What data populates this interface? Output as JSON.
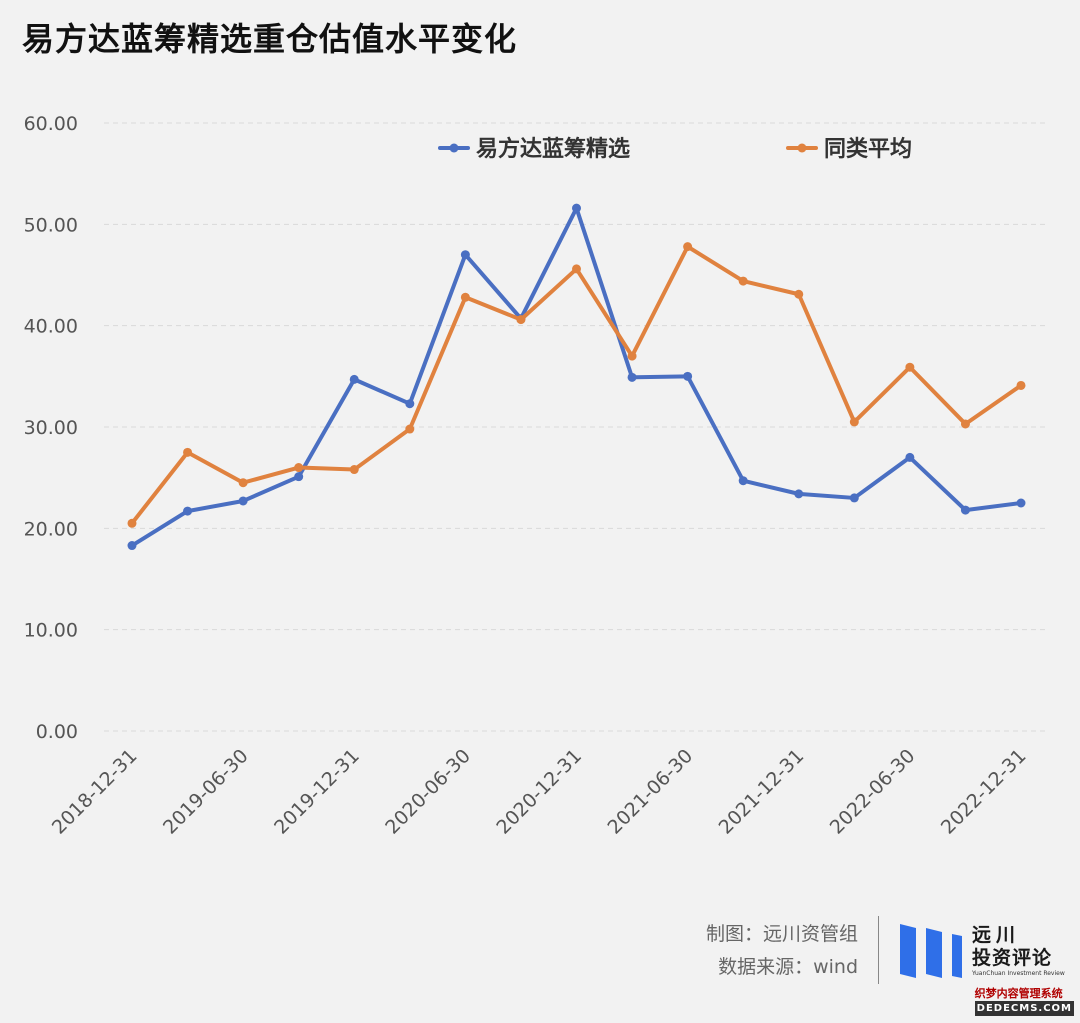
{
  "title": "易方达蓝筹精选重仓估值水平变化",
  "chart_data": {
    "type": "line",
    "title": "易方达蓝筹精选重仓估值水平变化",
    "xlabel": "",
    "ylabel": "",
    "ylim": [
      0,
      60
    ],
    "y_ticks": [
      "0.00",
      "10.00",
      "20.00",
      "30.00",
      "40.00",
      "50.00",
      "60.00"
    ],
    "x_tick_labels": [
      "2018-12-31",
      "2019-06-30",
      "2019-12-31",
      "2020-06-30",
      "2020-12-31",
      "2021-06-30",
      "2021-12-31",
      "2022-06-30",
      "2022-12-31"
    ],
    "x": [
      "2018-12-31",
      "2019-03-31",
      "2019-06-30",
      "2019-09-30",
      "2019-12-31",
      "2020-03-31",
      "2020-06-30",
      "2020-09-30",
      "2020-12-31",
      "2021-03-31",
      "2021-06-30",
      "2021-09-30",
      "2021-12-31",
      "2022-03-31",
      "2022-06-30",
      "2022-09-30",
      "2022-12-31"
    ],
    "grid": true,
    "legend_position": "top",
    "series": [
      {
        "name": "易方达蓝筹精选",
        "color": "#4a6fc2",
        "values": [
          18.3,
          21.7,
          22.7,
          25.1,
          34.7,
          32.3,
          47.0,
          40.7,
          51.6,
          34.9,
          35.0,
          24.7,
          23.4,
          23.0,
          27.0,
          21.8,
          22.5
        ]
      },
      {
        "name": "同类平均",
        "color": "#e0823f",
        "values": [
          20.5,
          27.5,
          24.5,
          26.0,
          25.8,
          29.8,
          42.8,
          40.6,
          45.6,
          37.0,
          47.8,
          44.4,
          43.1,
          30.5,
          35.9,
          30.3,
          34.1
        ]
      }
    ]
  },
  "footer": {
    "credit_line1": "制图：远川资管组",
    "credit_line2": "数据来源：wind",
    "logo_line1": "远川",
    "logo_line2": "投资评论",
    "logo_line3": "YuanChuan Investment Review",
    "logo_color": "#2f6fe8"
  },
  "watermark": {
    "line1": "织梦内容管理系统",
    "line2": "DEDECMS.COM"
  }
}
